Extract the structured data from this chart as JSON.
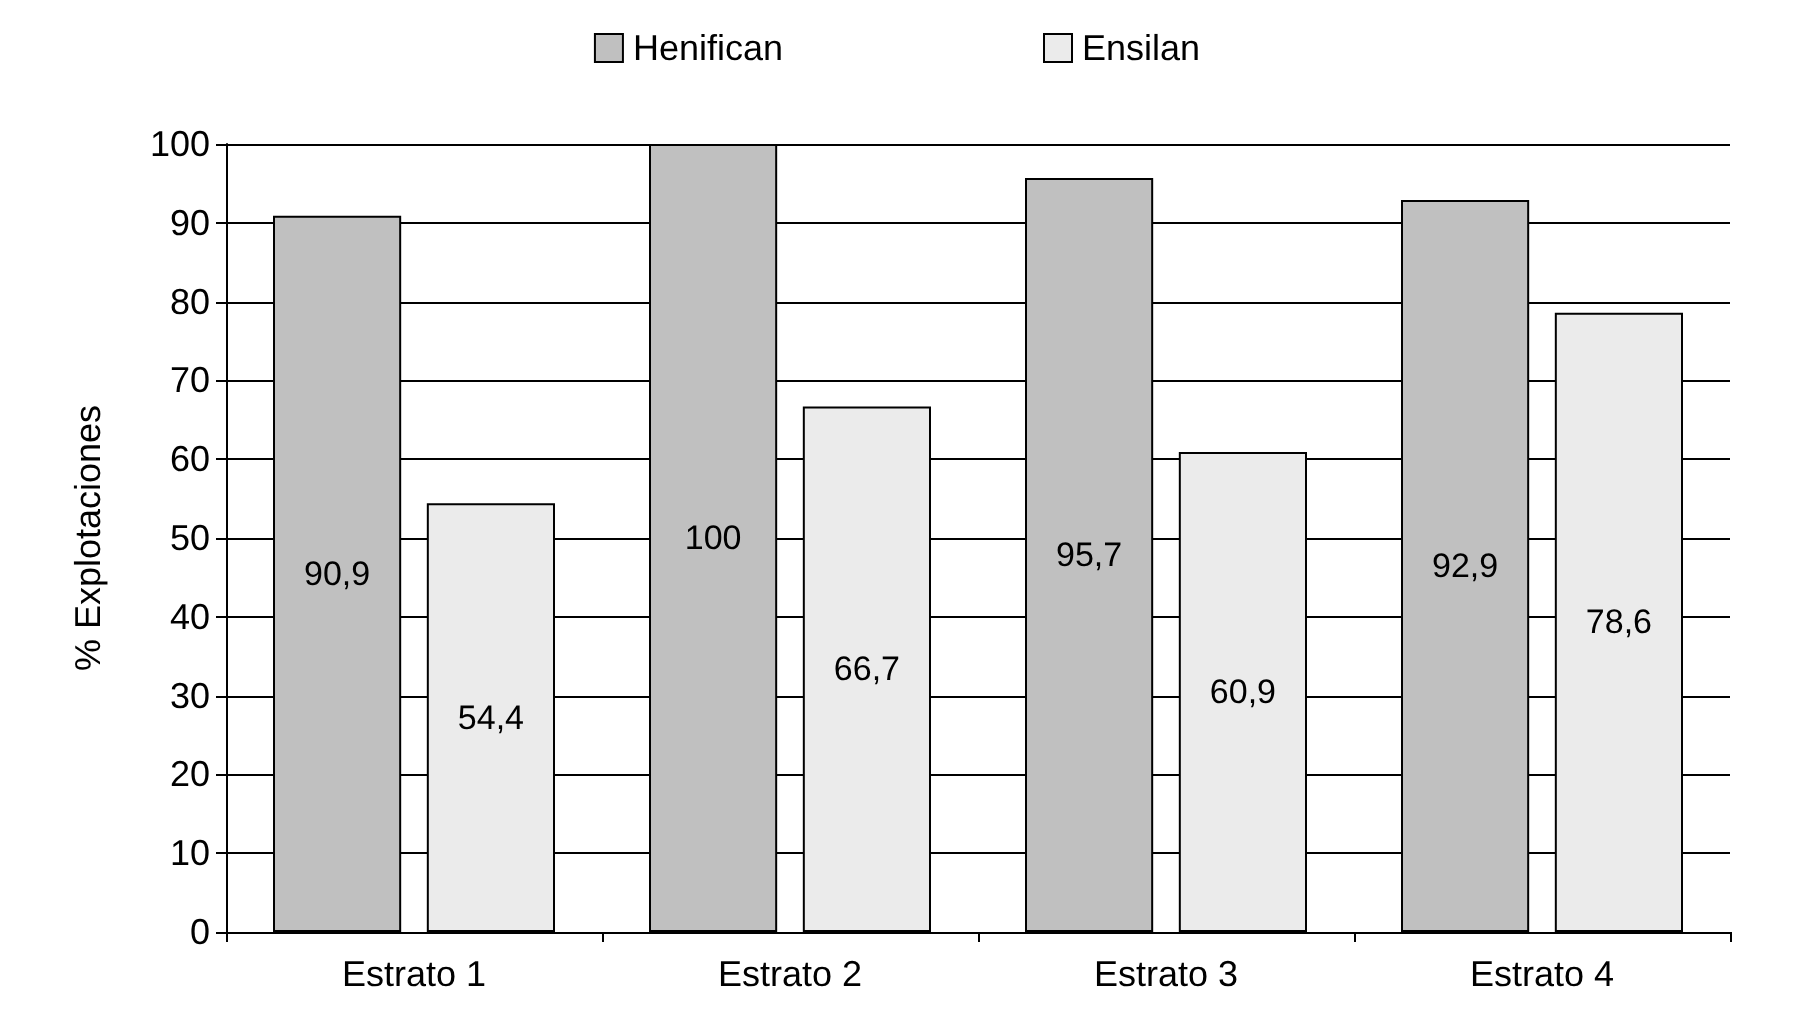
{
  "chart_data": {
    "type": "bar",
    "ylabel": "% Explotaciones",
    "categories": [
      "Estrato 1",
      "Estrato 2",
      "Estrato 3",
      "Estrato 4"
    ],
    "series": [
      {
        "name": "Henifican",
        "color": "#c0c0c0",
        "values": [
          90.9,
          100,
          95.7,
          92.9
        ],
        "value_labels": [
          "90,9",
          "100",
          "95,7",
          "92,9"
        ]
      },
      {
        "name": "Ensilan",
        "color": "#ebebeb",
        "values": [
          54.4,
          66.7,
          60.9,
          78.6
        ],
        "value_labels": [
          "54,4",
          "66,7",
          "60,9",
          "78,6"
        ]
      }
    ],
    "ylim": [
      0,
      100
    ],
    "yticks": [
      0,
      10,
      20,
      30,
      40,
      50,
      60,
      70,
      80,
      90,
      100
    ],
    "grid": "y",
    "legend": "top"
  }
}
